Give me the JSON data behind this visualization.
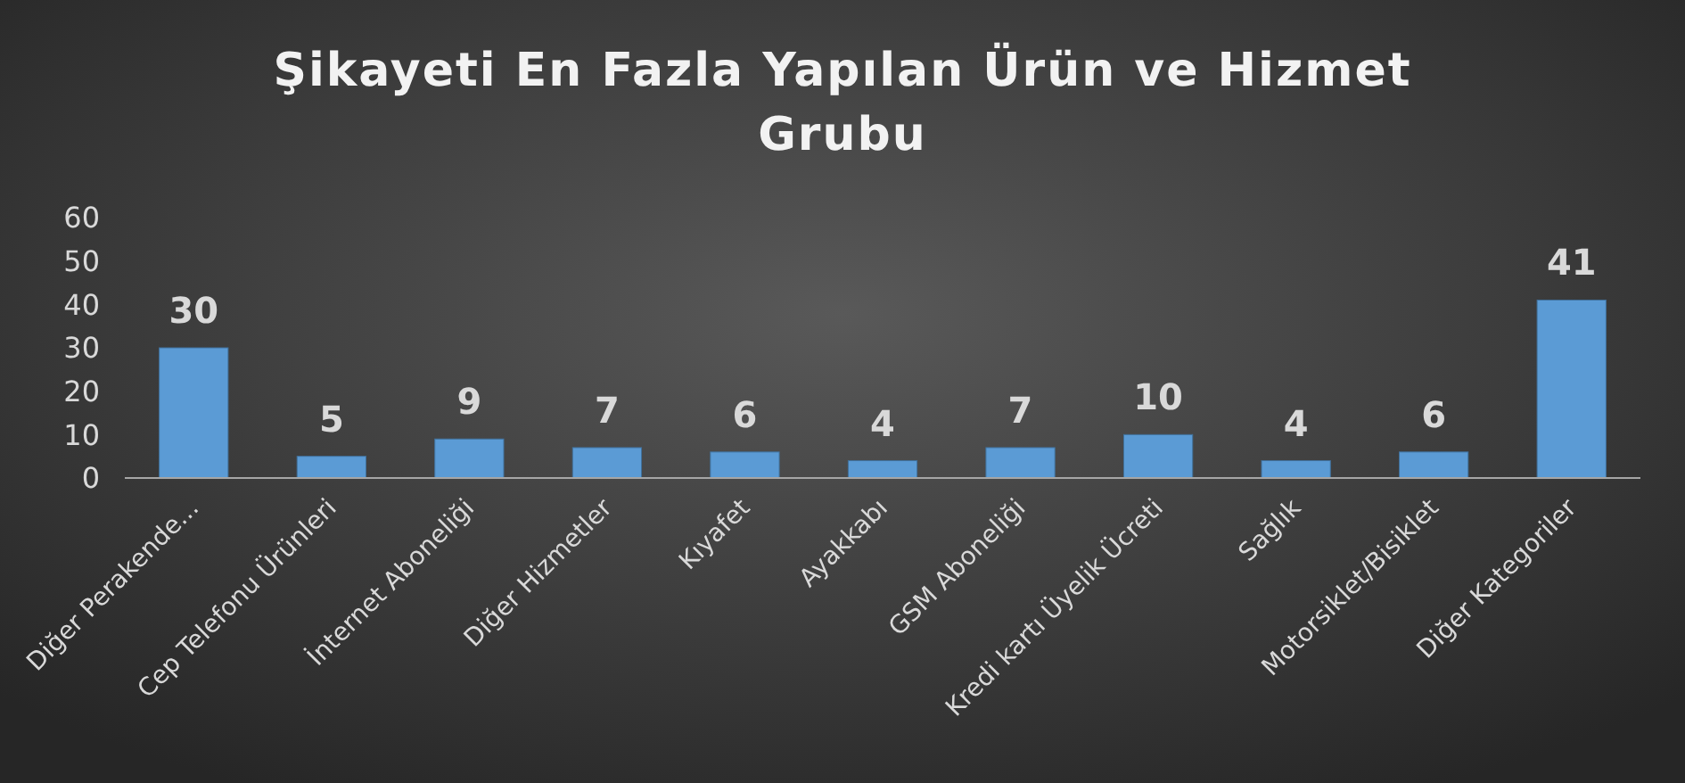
{
  "chart_data": {
    "type": "bar",
    "title": "Şikayeti En Fazla Yapılan Ürün ve Hizmet Grubu",
    "categories": [
      "Diğer Perakende...",
      "Cep Telefonu Ürünleri",
      "İnternet Aboneliği",
      "Diğer Hizmetler",
      "Kıyafet",
      "Ayakkabı",
      "GSM Aboneliği",
      "Kredi kartı Üyelik Ücreti",
      "Sağlık",
      "Motorsiklet/Bisiklet",
      "Diğer Kategoriler"
    ],
    "values": [
      30,
      5,
      9,
      7,
      6,
      4,
      7,
      10,
      4,
      6,
      41
    ],
    "color": "#5b9bd5",
    "ylim": [
      0,
      60
    ],
    "yticks": [
      0,
      10,
      20,
      30,
      40,
      50,
      60
    ],
    "data_labels": true
  }
}
